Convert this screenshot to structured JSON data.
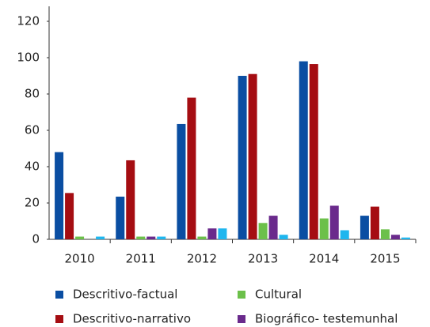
{
  "chart_data": {
    "type": "bar",
    "categories": [
      "2010",
      "2011",
      "2012",
      "2013",
      "2014",
      "2015"
    ],
    "series": [
      {
        "name": "Descritivo-factual",
        "color": "#0a4ea2",
        "values": [
          48,
          23.5,
          63.5,
          90,
          98,
          13
        ]
      },
      {
        "name": "Descritivo-narrativo",
        "color": "#a50d12",
        "values": [
          25.5,
          43.5,
          78,
          91,
          96.5,
          18
        ]
      },
      {
        "name": "Cultural",
        "color": "#6cc04a",
        "values": [
          1.5,
          1.5,
          1.5,
          9,
          11.5,
          5.5
        ]
      },
      {
        "name": "Biográfico- testemunhal",
        "color": "#6a2a8c",
        "values": [
          0,
          1.5,
          6,
          13,
          18.5,
          2.5
        ]
      },
      {
        "color": "#1fb6ee",
        "values": [
          1.5,
          1.5,
          6,
          2.5,
          5,
          1
        ]
      }
    ],
    "ylim": [
      0,
      120
    ],
    "yticks": [
      0,
      20,
      40,
      60,
      80,
      100,
      120
    ],
    "grid": false
  }
}
